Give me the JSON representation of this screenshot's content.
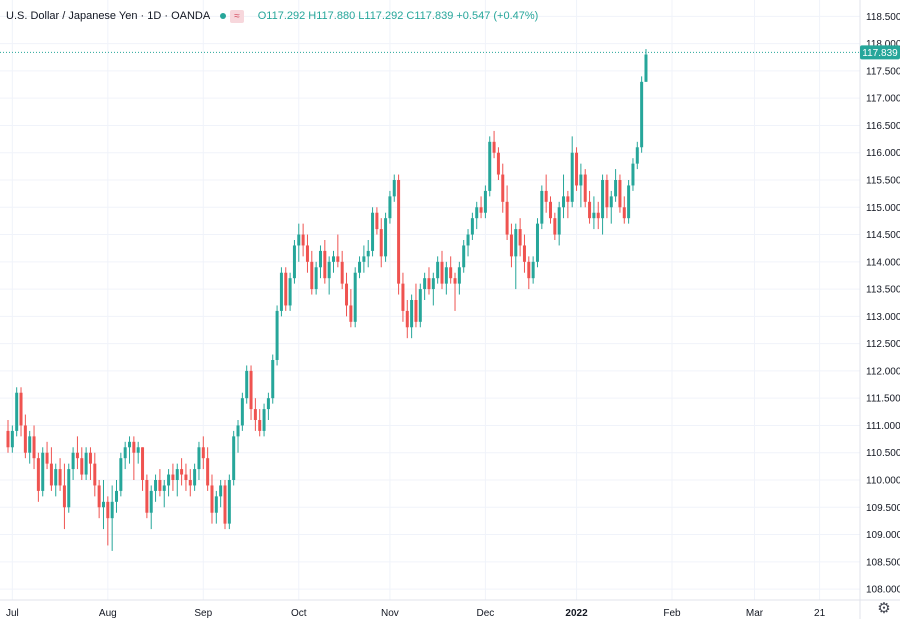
{
  "header": {
    "symbol": "U.S. Dollar / Japanese Yen · 1D · OANDA",
    "icons": [
      "status-dot-icon",
      "wave-icon"
    ],
    "wave_glyph": "≈",
    "ohlc": {
      "o_label": "O",
      "o": "117.292",
      "h_label": "H",
      "h": "117.880",
      "l_label": "L",
      "l": "117.292",
      "c_label": "C",
      "c": "117.839",
      "change": "+0.547 (+0.47%)"
    }
  },
  "last_price_label": "117.839",
  "settings_icon": "gear-icon",
  "colors": {
    "up": "#26a69a",
    "down": "#ef5350",
    "grid": "#f0f3fa",
    "axis_text": "#131722",
    "price_line": "#26a69a"
  },
  "chart_data": {
    "type": "candlestick",
    "title": "",
    "xlabel": "",
    "ylabel": "",
    "ylim": [
      107.8,
      118.8
    ],
    "y_ticks": [
      "118.500",
      "118.000",
      "117.500",
      "117.000",
      "116.500",
      "116.000",
      "115.500",
      "115.000",
      "114.500",
      "114.000",
      "113.500",
      "113.000",
      "112.500",
      "112.000",
      "111.500",
      "111.000",
      "110.500",
      "110.000",
      "109.500",
      "109.000",
      "108.500",
      "108.000"
    ],
    "x_ticks": [
      {
        "label": "Jul",
        "index": 1
      },
      {
        "label": "Aug",
        "index": 23
      },
      {
        "label": "Sep",
        "index": 45
      },
      {
        "label": "Oct",
        "index": 67
      },
      {
        "label": "Nov",
        "index": 88
      },
      {
        "label": "Dec",
        "index": 110
      },
      {
        "label": "2022",
        "index": 131
      },
      {
        "label": "Feb",
        "index": 153
      },
      {
        "label": "Mar",
        "index": 172
      },
      {
        "label": "21",
        "index": 187
      }
    ],
    "grid": true,
    "last_price": 117.839,
    "candles": [
      [
        110.9,
        111.1,
        110.5,
        110.6
      ],
      [
        110.6,
        111.0,
        110.5,
        110.9
      ],
      [
        110.9,
        111.7,
        110.8,
        111.6
      ],
      [
        111.6,
        111.7,
        110.8,
        111.0
      ],
      [
        111.0,
        111.2,
        110.4,
        110.5
      ],
      [
        110.5,
        110.9,
        110.3,
        110.8
      ],
      [
        110.8,
        111.0,
        110.2,
        110.4
      ],
      [
        110.4,
        110.5,
        109.6,
        109.8
      ],
      [
        109.8,
        110.6,
        109.7,
        110.5
      ],
      [
        110.5,
        110.7,
        110.2,
        110.3
      ],
      [
        110.3,
        110.6,
        109.8,
        109.9
      ],
      [
        109.9,
        110.3,
        109.7,
        110.2
      ],
      [
        110.2,
        110.4,
        109.8,
        109.9
      ],
      [
        109.9,
        110.3,
        109.1,
        109.5
      ],
      [
        109.5,
        110.3,
        109.4,
        110.2
      ],
      [
        110.2,
        110.6,
        110.0,
        110.5
      ],
      [
        110.5,
        110.8,
        110.2,
        110.4
      ],
      [
        110.4,
        110.6,
        110.0,
        110.1
      ],
      [
        110.1,
        110.6,
        110.0,
        110.5
      ],
      [
        110.5,
        110.6,
        110.0,
        110.3
      ],
      [
        110.3,
        110.5,
        109.7,
        109.9
      ],
      [
        109.9,
        110.0,
        109.3,
        109.5
      ],
      [
        109.5,
        110.0,
        109.1,
        109.6
      ],
      [
        109.6,
        109.7,
        108.8,
        109.3
      ],
      [
        109.3,
        109.9,
        108.7,
        109.6
      ],
      [
        109.6,
        110.0,
        109.4,
        109.8
      ],
      [
        109.8,
        110.5,
        109.7,
        110.4
      ],
      [
        110.4,
        110.7,
        110.2,
        110.6
      ],
      [
        110.6,
        110.8,
        110.3,
        110.7
      ],
      [
        110.7,
        110.8,
        110.0,
        110.5
      ],
      [
        110.5,
        110.7,
        110.3,
        110.6
      ],
      [
        110.6,
        110.6,
        109.8,
        110.0
      ],
      [
        110.0,
        110.1,
        109.3,
        109.4
      ],
      [
        109.4,
        109.9,
        109.1,
        109.8
      ],
      [
        109.8,
        110.1,
        109.6,
        110.0
      ],
      [
        110.0,
        110.2,
        109.7,
        109.8
      ],
      [
        109.8,
        110.0,
        109.5,
        109.9
      ],
      [
        109.9,
        110.2,
        109.7,
        110.1
      ],
      [
        110.1,
        110.3,
        109.8,
        110.0
      ],
      [
        110.0,
        110.3,
        109.7,
        110.2
      ],
      [
        110.2,
        110.4,
        109.9,
        110.1
      ],
      [
        110.1,
        110.3,
        109.8,
        110.0
      ],
      [
        110.0,
        110.2,
        109.7,
        109.9
      ],
      [
        109.9,
        110.3,
        109.8,
        110.2
      ],
      [
        110.2,
        110.7,
        110.0,
        110.6
      ],
      [
        110.6,
        110.8,
        110.2,
        110.4
      ],
      [
        110.4,
        110.6,
        109.8,
        109.9
      ],
      [
        109.9,
        110.1,
        109.2,
        109.4
      ],
      [
        109.4,
        109.8,
        109.2,
        109.7
      ],
      [
        109.7,
        110.0,
        109.5,
        109.9
      ],
      [
        109.9,
        110.0,
        109.1,
        109.2
      ],
      [
        109.2,
        110.1,
        109.1,
        110.0
      ],
      [
        110.0,
        110.9,
        109.9,
        110.8
      ],
      [
        110.8,
        111.1,
        110.5,
        111.0
      ],
      [
        111.0,
        111.6,
        110.9,
        111.5
      ],
      [
        111.5,
        112.1,
        111.4,
        112.0
      ],
      [
        112.0,
        112.1,
        111.1,
        111.3
      ],
      [
        111.3,
        111.5,
        110.9,
        111.1
      ],
      [
        111.1,
        111.3,
        110.8,
        110.9
      ],
      [
        110.9,
        111.4,
        110.8,
        111.3
      ],
      [
        111.3,
        111.6,
        111.1,
        111.5
      ],
      [
        111.5,
        112.3,
        111.4,
        112.2
      ],
      [
        112.2,
        113.2,
        112.1,
        113.1
      ],
      [
        113.1,
        113.9,
        113.0,
        113.8
      ],
      [
        113.8,
        113.9,
        113.1,
        113.2
      ],
      [
        113.2,
        113.8,
        113.1,
        113.7
      ],
      [
        113.7,
        114.4,
        113.6,
        114.3
      ],
      [
        114.3,
        114.7,
        114.0,
        114.5
      ],
      [
        114.5,
        114.7,
        114.1,
        114.3
      ],
      [
        114.3,
        114.5,
        113.8,
        114.0
      ],
      [
        114.0,
        114.2,
        113.4,
        113.5
      ],
      [
        113.5,
        114.0,
        113.4,
        113.9
      ],
      [
        113.9,
        114.3,
        113.7,
        114.2
      ],
      [
        114.2,
        114.4,
        113.6,
        113.7
      ],
      [
        113.7,
        114.1,
        113.4,
        114.0
      ],
      [
        114.0,
        114.2,
        113.8,
        114.1
      ],
      [
        114.1,
        114.5,
        113.9,
        114.0
      ],
      [
        114.0,
        114.2,
        113.5,
        113.6
      ],
      [
        113.6,
        113.8,
        113.0,
        113.2
      ],
      [
        113.2,
        113.5,
        112.8,
        112.9
      ],
      [
        112.9,
        113.9,
        112.8,
        113.8
      ],
      [
        113.8,
        114.1,
        113.7,
        114.0
      ],
      [
        114.0,
        114.3,
        113.8,
        114.1
      ],
      [
        114.1,
        114.4,
        113.9,
        114.2
      ],
      [
        114.2,
        115.0,
        114.1,
        114.9
      ],
      [
        114.9,
        115.0,
        114.5,
        114.6
      ],
      [
        114.6,
        114.8,
        113.9,
        114.1
      ],
      [
        114.1,
        114.9,
        114.0,
        114.8
      ],
      [
        114.8,
        115.3,
        114.7,
        115.2
      ],
      [
        115.2,
        115.6,
        115.1,
        115.5
      ],
      [
        115.5,
        115.6,
        113.4,
        113.6
      ],
      [
        113.6,
        113.8,
        112.9,
        113.1
      ],
      [
        113.1,
        113.3,
        112.6,
        112.8
      ],
      [
        112.8,
        113.4,
        112.6,
        113.3
      ],
      [
        113.3,
        113.6,
        112.8,
        112.9
      ],
      [
        112.9,
        113.6,
        112.8,
        113.5
      ],
      [
        113.5,
        113.8,
        113.3,
        113.7
      ],
      [
        113.7,
        113.9,
        113.4,
        113.5
      ],
      [
        113.5,
        113.8,
        113.2,
        113.7
      ],
      [
        113.7,
        114.1,
        113.6,
        114.0
      ],
      [
        114.0,
        114.2,
        113.5,
        113.6
      ],
      [
        113.6,
        114.0,
        113.4,
        113.9
      ],
      [
        113.9,
        114.1,
        113.6,
        113.7
      ],
      [
        113.7,
        113.8,
        113.1,
        113.6
      ],
      [
        113.6,
        114.0,
        113.4,
        113.9
      ],
      [
        113.9,
        114.4,
        113.8,
        114.3
      ],
      [
        114.3,
        114.6,
        114.1,
        114.5
      ],
      [
        114.5,
        114.9,
        114.4,
        114.8
      ],
      [
        114.8,
        115.1,
        114.6,
        115.0
      ],
      [
        115.0,
        115.2,
        114.8,
        114.9
      ],
      [
        114.9,
        115.4,
        114.8,
        115.3
      ],
      [
        115.3,
        116.3,
        115.2,
        116.2
      ],
      [
        116.2,
        116.4,
        115.9,
        116.0
      ],
      [
        116.0,
        116.1,
        115.5,
        115.6
      ],
      [
        115.6,
        115.8,
        114.9,
        115.1
      ],
      [
        115.1,
        115.4,
        114.4,
        114.5
      ],
      [
        114.5,
        114.7,
        113.9,
        114.1
      ],
      [
        114.1,
        114.7,
        113.5,
        114.6
      ],
      [
        114.6,
        114.8,
        114.1,
        114.3
      ],
      [
        114.3,
        114.5,
        113.8,
        114.0
      ],
      [
        114.0,
        114.1,
        113.5,
        113.7
      ],
      [
        113.7,
        114.1,
        113.6,
        114.0
      ],
      [
        114.0,
        114.8,
        113.9,
        114.7
      ],
      [
        114.7,
        115.4,
        114.6,
        115.3
      ],
      [
        115.3,
        115.6,
        114.9,
        115.1
      ],
      [
        115.1,
        115.2,
        114.7,
        114.8
      ],
      [
        114.8,
        114.9,
        114.4,
        114.5
      ],
      [
        114.5,
        115.1,
        114.3,
        115.0
      ],
      [
        115.0,
        115.6,
        114.8,
        115.2
      ],
      [
        115.2,
        115.3,
        114.8,
        115.1
      ],
      [
        115.1,
        116.3,
        115.0,
        116.0
      ],
      [
        116.0,
        116.1,
        115.3,
        115.4
      ],
      [
        115.4,
        115.8,
        115.0,
        115.6
      ],
      [
        115.6,
        115.7,
        115.0,
        115.1
      ],
      [
        115.1,
        115.3,
        114.7,
        114.8
      ],
      [
        114.8,
        115.2,
        114.6,
        114.9
      ],
      [
        114.9,
        115.1,
        114.6,
        114.8
      ],
      [
        114.8,
        115.6,
        114.5,
        115.5
      ],
      [
        115.5,
        115.6,
        114.8,
        115.0
      ],
      [
        115.0,
        115.3,
        114.7,
        115.2
      ],
      [
        115.2,
        115.7,
        115.1,
        115.5
      ],
      [
        115.5,
        115.6,
        114.9,
        115.0
      ],
      [
        115.0,
        115.2,
        114.7,
        114.8
      ],
      [
        114.8,
        115.5,
        114.7,
        115.4
      ],
      [
        115.4,
        115.9,
        115.3,
        115.8
      ],
      [
        115.8,
        116.2,
        115.7,
        116.1
      ],
      [
        116.1,
        117.4,
        116.0,
        117.3
      ],
      [
        117.3,
        117.9,
        117.3,
        117.8
      ]
    ]
  }
}
